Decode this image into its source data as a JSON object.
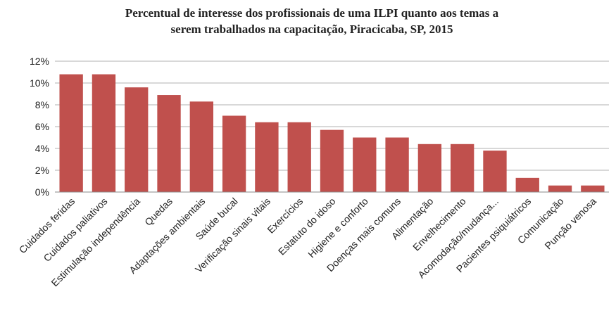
{
  "chart_data": {
    "type": "bar",
    "title": [
      "Percentual de interesse dos profissionais de uma ILPI quanto aos temas a",
      "serem trabalhados na capacitação, Piracicaba, SP, 2015"
    ],
    "categories": [
      "Cuidados feridas",
      "Cuidados paliativos",
      "Estimulação independência",
      "Quedas",
      "Adaptações ambientais",
      "Saúde bucal",
      "Verificação sinais vitais",
      "Exercícios",
      "Estatuto do idoso",
      "Higiene e conforto",
      "Doenças mais comuns",
      "Alimentação",
      "Envelhecimento",
      "Acomodação/mudança...",
      "Pacientes psiquiátricos",
      "Comunicação",
      "Punção venosa"
    ],
    "values": [
      10.8,
      10.8,
      9.6,
      8.9,
      8.3,
      7.0,
      6.4,
      6.4,
      5.7,
      5.0,
      5.0,
      4.4,
      4.4,
      3.8,
      1.3,
      0.6,
      0.6
    ],
    "color": "#c0504d",
    "ylim": [
      0,
      12
    ],
    "yticks": [
      {
        "value": 0,
        "label": "0%"
      },
      {
        "value": 2,
        "label": "2%"
      },
      {
        "value": 4,
        "label": "4%"
      },
      {
        "value": 6,
        "label": "6%"
      },
      {
        "value": 8,
        "label": "8%"
      },
      {
        "value": 10,
        "label": "10%"
      },
      {
        "value": 12,
        "label": "12%"
      }
    ],
    "grid": true
  }
}
